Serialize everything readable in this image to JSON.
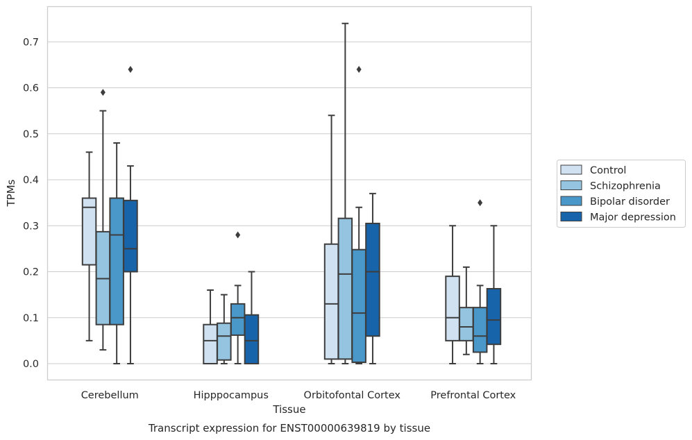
{
  "chart_data": {
    "type": "box",
    "title": "Transcript expression for ENST00000639819 by tissue",
    "xlabel": "Tissue",
    "ylabel": "TPMs",
    "ylim": [
      -0.035,
      0.775
    ],
    "yticks": [
      0.0,
      0.1,
      0.2,
      0.3,
      0.4,
      0.5,
      0.6,
      0.7
    ],
    "ytick_labels": [
      "0.0",
      "0.1",
      "0.2",
      "0.3",
      "0.4",
      "0.5",
      "0.6",
      "0.7"
    ],
    "grid": "horizontal",
    "legend_position": "right",
    "categories": [
      "Cerebellum",
      "Hipppocampus",
      "Orbitofontal Cortex",
      "Prefrontal Cortex"
    ],
    "series": [
      {
        "name": "Control",
        "color": "#d0e1f2",
        "boxes": [
          {
            "whislo": 0.05,
            "q1": 0.215,
            "med": 0.34,
            "q3": 0.36,
            "whishi": 0.46,
            "fliers": []
          },
          {
            "whislo": 0.0,
            "q1": 0.0,
            "med": 0.05,
            "q3": 0.085,
            "whishi": 0.16,
            "fliers": []
          },
          {
            "whislo": 0.0,
            "q1": 0.01,
            "med": 0.13,
            "q3": 0.26,
            "whishi": 0.54,
            "fliers": []
          },
          {
            "whislo": 0.0,
            "q1": 0.05,
            "med": 0.1,
            "q3": 0.19,
            "whishi": 0.3,
            "fliers": []
          }
        ]
      },
      {
        "name": "Schizophrenia",
        "color": "#94c4df",
        "boxes": [
          {
            "whislo": 0.03,
            "q1": 0.085,
            "med": 0.185,
            "q3": 0.287,
            "whishi": 0.55,
            "fliers": [
              0.59
            ]
          },
          {
            "whislo": 0.0,
            "q1": 0.008,
            "med": 0.06,
            "q3": 0.088,
            "whishi": 0.15,
            "fliers": []
          },
          {
            "whislo": 0.0,
            "q1": 0.01,
            "med": 0.195,
            "q3": 0.316,
            "whishi": 0.74,
            "fliers": []
          },
          {
            "whislo": 0.02,
            "q1": 0.05,
            "med": 0.08,
            "q3": 0.122,
            "whishi": 0.21,
            "fliers": []
          }
        ]
      },
      {
        "name": "Bipolar disorder",
        "color": "#4a98c9",
        "boxes": [
          {
            "whislo": 0.0,
            "q1": 0.085,
            "med": 0.28,
            "q3": 0.36,
            "whishi": 0.48,
            "fliers": []
          },
          {
            "whislo": 0.0,
            "q1": 0.062,
            "med": 0.1,
            "q3": 0.13,
            "whishi": 0.17,
            "fliers": [
              0.28
            ]
          },
          {
            "whislo": 0.0,
            "q1": 0.003,
            "med": 0.11,
            "q3": 0.248,
            "whishi": 0.34,
            "fliers": [
              0.64
            ]
          },
          {
            "whislo": 0.0,
            "q1": 0.025,
            "med": 0.06,
            "q3": 0.122,
            "whishi": 0.17,
            "fliers": [
              0.35
            ]
          }
        ]
      },
      {
        "name": "Major depression",
        "color": "#1764ab",
        "boxes": [
          {
            "whislo": 0.0,
            "q1": 0.2,
            "med": 0.25,
            "q3": 0.355,
            "whishi": 0.43,
            "fliers": [
              0.64
            ]
          },
          {
            "whislo": 0.0,
            "q1": 0.0,
            "med": 0.05,
            "q3": 0.106,
            "whishi": 0.2,
            "fliers": []
          },
          {
            "whislo": 0.0,
            "q1": 0.06,
            "med": 0.2,
            "q3": 0.305,
            "whishi": 0.37,
            "fliers": []
          },
          {
            "whislo": 0.0,
            "q1": 0.042,
            "med": 0.095,
            "q3": 0.163,
            "whishi": 0.3,
            "fliers": []
          }
        ]
      }
    ]
  }
}
